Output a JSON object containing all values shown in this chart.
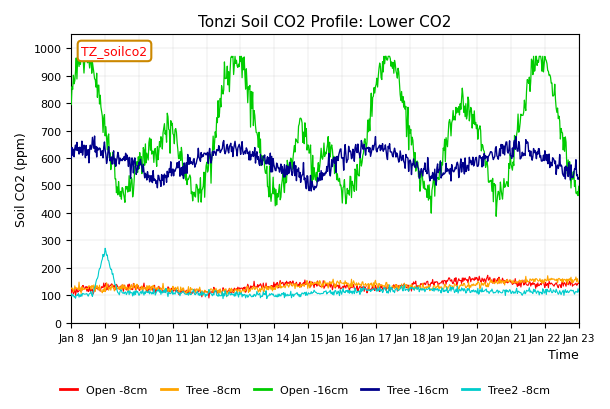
{
  "title": "Tonzi Soil CO2 Profile: Lower CO2",
  "xlabel": "Time",
  "ylabel": "Soil CO2 (ppm)",
  "ylim": [
    0,
    1050
  ],
  "legend_title": "TZ_soilco2",
  "series_labels": [
    "Open -8cm",
    "Tree -8cm",
    "Open -16cm",
    "Tree -16cm",
    "Tree2 -8cm"
  ],
  "series_colors": [
    "#ff0000",
    "#ffa500",
    "#00cc00",
    "#00008b",
    "#00cccc"
  ],
  "xtick_labels": [
    "Jan 8",
    "Jan 9",
    "Jan 10",
    "Jan 11",
    "Jan 12",
    "Jan 13",
    "Jan 14",
    "Jan 15",
    "Jan 16",
    "Jan 17",
    "Jan 18",
    "Jan 19",
    "Jan 20",
    "Jan 21",
    "Jan 22",
    "Jan 23"
  ],
  "ytick_values": [
    0,
    100,
    200,
    300,
    400,
    500,
    600,
    700,
    800,
    900,
    1000
  ],
  "n_points": 720,
  "background_color": "#ffffff"
}
